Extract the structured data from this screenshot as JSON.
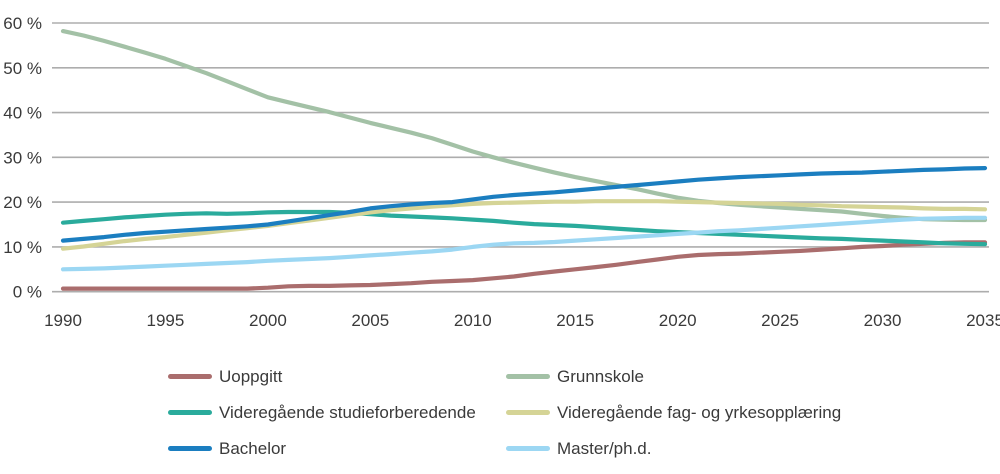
{
  "colors": {
    "background": "#ffffff",
    "grid": "#adadad",
    "axis_text": "#3a3a3a"
  },
  "chart_data": {
    "type": "line",
    "title": "",
    "xlabel": "",
    "ylabel": "",
    "grid": "horizontal",
    "legend_position": "bottom-two-columns",
    "x_min": 1990,
    "x_max": 2035,
    "y_min": 0,
    "y_max": 60,
    "x_ticks": [
      1990,
      1995,
      2000,
      2005,
      2010,
      2015,
      2020,
      2025,
      2030,
      2035
    ],
    "x_tick_labels": [
      "1990",
      "1995",
      "2000",
      "2005",
      "2010",
      "2015",
      "2020",
      "2025",
      "2030",
      "2035"
    ],
    "y_ticks": [
      0,
      10,
      20,
      30,
      40,
      50,
      60
    ],
    "y_tick_labels": [
      "0 %",
      "10 %",
      "20 %",
      "30 %",
      "40 %",
      "50 %",
      "60 %"
    ],
    "x": [
      1990,
      1991,
      1992,
      1993,
      1994,
      1995,
      1996,
      1997,
      1998,
      1999,
      2000,
      2001,
      2002,
      2003,
      2004,
      2005,
      2006,
      2007,
      2008,
      2009,
      2010,
      2011,
      2012,
      2013,
      2014,
      2015,
      2016,
      2017,
      2018,
      2019,
      2020,
      2021,
      2022,
      2023,
      2024,
      2025,
      2026,
      2027,
      2028,
      2029,
      2030,
      2031,
      2032,
      2033,
      2034,
      2035
    ],
    "series": [
      {
        "id": "uoppgitt",
        "name": "Uoppgitt",
        "color": "#aa6d6d",
        "values": [
          0.7,
          0.7,
          0.7,
          0.7,
          0.7,
          0.7,
          0.7,
          0.7,
          0.7,
          0.7,
          0.9,
          1.2,
          1.3,
          1.3,
          1.4,
          1.5,
          1.7,
          1.9,
          2.2,
          2.4,
          2.6,
          3.0,
          3.4,
          4.0,
          4.5,
          5.0,
          5.5,
          6.0,
          6.6,
          7.2,
          7.8,
          8.2,
          8.4,
          8.5,
          8.7,
          8.9,
          9.1,
          9.4,
          9.7,
          10.0,
          10.2,
          10.5,
          10.7,
          10.9,
          11.0,
          11.0
        ]
      },
      {
        "id": "grunnskole",
        "name": "Grunnskole",
        "color": "#a3c1a6",
        "values": [
          58.2,
          57.2,
          56.0,
          54.7,
          53.4,
          52.0,
          50.4,
          48.8,
          47.0,
          45.2,
          43.4,
          42.3,
          41.2,
          40.1,
          38.9,
          37.7,
          36.6,
          35.5,
          34.3,
          32.8,
          31.3,
          30.0,
          28.8,
          27.7,
          26.6,
          25.6,
          24.7,
          23.8,
          22.9,
          21.9,
          21.0,
          20.3,
          19.8,
          19.4,
          19.1,
          18.8,
          18.5,
          18.2,
          17.9,
          17.4,
          16.9,
          16.5,
          16.2,
          16.1,
          16.0,
          16.0
        ]
      },
      {
        "id": "videregaende-studieforberedende",
        "name": "Videregående studieforberedende",
        "color": "#2aab9c",
        "values": [
          15.4,
          15.8,
          16.2,
          16.6,
          16.9,
          17.2,
          17.4,
          17.5,
          17.4,
          17.5,
          17.7,
          17.8,
          17.8,
          17.8,
          17.6,
          17.3,
          17.0,
          16.8,
          16.6,
          16.4,
          16.1,
          15.8,
          15.4,
          15.1,
          14.9,
          14.7,
          14.4,
          14.1,
          13.8,
          13.5,
          13.3,
          13.1,
          12.9,
          12.7,
          12.5,
          12.3,
          12.1,
          11.9,
          11.8,
          11.6,
          11.4,
          11.2,
          11.0,
          10.8,
          10.7,
          10.6
        ]
      },
      {
        "id": "videregaende-fag-og-yrkesopplaering",
        "name": "Videregående fag- og yrkesopplæring",
        "color": "#d5d496",
        "values": [
          9.6,
          10.1,
          10.7,
          11.3,
          11.8,
          12.2,
          12.7,
          13.2,
          13.7,
          14.2,
          14.7,
          15.3,
          15.9,
          16.5,
          17.1,
          17.7,
          18.2,
          18.6,
          19.0,
          19.3,
          19.6,
          19.8,
          19.9,
          20.0,
          20.1,
          20.1,
          20.2,
          20.2,
          20.2,
          20.2,
          20.1,
          20.0,
          19.9,
          19.8,
          19.7,
          19.6,
          19.4,
          19.3,
          19.1,
          19.0,
          18.9,
          18.8,
          18.6,
          18.5,
          18.5,
          18.4
        ]
      },
      {
        "id": "bachelor",
        "name": "Bachelor",
        "color": "#1b7ec0",
        "values": [
          11.4,
          11.8,
          12.2,
          12.7,
          13.1,
          13.4,
          13.7,
          14.0,
          14.3,
          14.6,
          15.0,
          15.7,
          16.4,
          17.1,
          17.8,
          18.6,
          19.1,
          19.5,
          19.8,
          20.0,
          20.6,
          21.2,
          21.6,
          21.9,
          22.2,
          22.6,
          23.0,
          23.4,
          23.8,
          24.2,
          24.6,
          25.0,
          25.3,
          25.6,
          25.8,
          26.0,
          26.2,
          26.4,
          26.5,
          26.6,
          26.8,
          27.0,
          27.2,
          27.3,
          27.5,
          27.6
        ]
      },
      {
        "id": "master-phd",
        "name": "Master/ph.d.",
        "color": "#9cd7f3",
        "values": [
          5.0,
          5.1,
          5.2,
          5.4,
          5.6,
          5.8,
          6.0,
          6.2,
          6.4,
          6.6,
          6.9,
          7.1,
          7.3,
          7.5,
          7.8,
          8.1,
          8.4,
          8.7,
          9.0,
          9.4,
          10.0,
          10.5,
          10.8,
          10.9,
          11.1,
          11.4,
          11.7,
          12.0,
          12.3,
          12.6,
          12.9,
          13.2,
          13.5,
          13.7,
          14.0,
          14.3,
          14.6,
          14.9,
          15.2,
          15.5,
          15.8,
          16.1,
          16.3,
          16.4,
          16.5,
          16.5
        ]
      }
    ]
  }
}
